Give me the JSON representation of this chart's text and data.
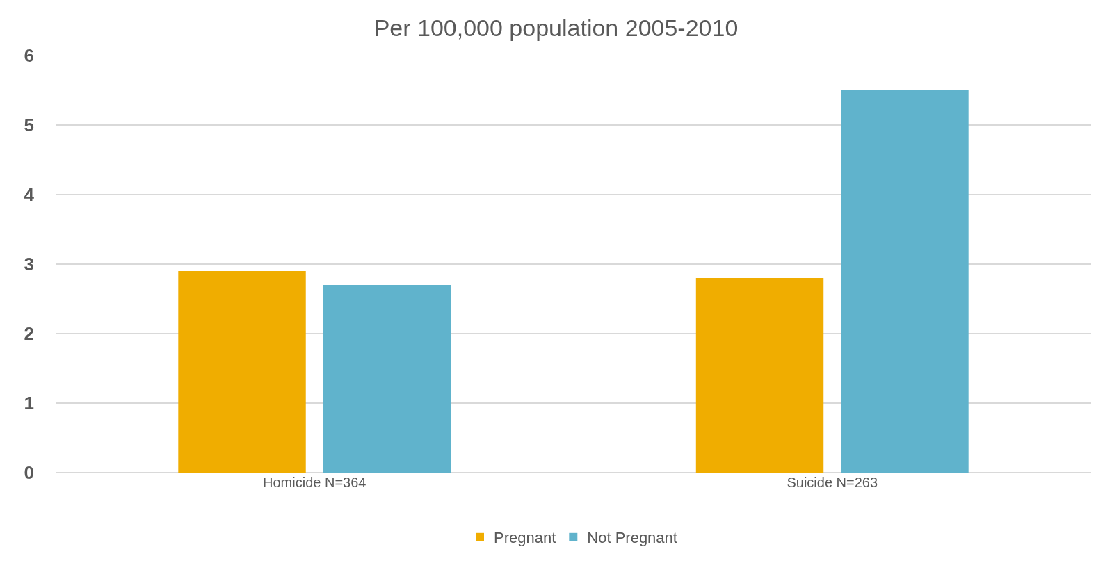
{
  "chart_data": {
    "type": "bar",
    "title": "Per 100,000 population 2005-2010",
    "categories": [
      "Homicide N=364",
      "Suicide N=263"
    ],
    "series": [
      {
        "name": "Pregnant",
        "color": "#f0ad00",
        "values": [
          2.9,
          2.8
        ]
      },
      {
        "name": "Not Pregnant",
        "color": "#60b3cc",
        "values": [
          2.7,
          5.5
        ]
      }
    ],
    "ylim": [
      0,
      6
    ],
    "yticks": [
      0,
      1,
      2,
      3,
      4,
      5,
      6
    ],
    "grid": "y",
    "legend": "bottom"
  }
}
